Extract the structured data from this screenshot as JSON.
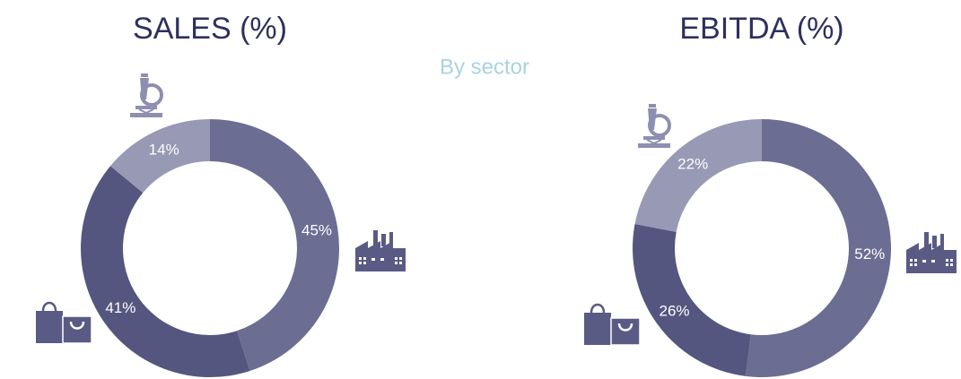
{
  "subtitle": "By sector",
  "chart_data": [
    {
      "type": "pie",
      "title": "SALES (%)",
      "values": [
        45,
        41,
        14
      ],
      "value_labels": [
        "45%",
        "41%",
        "14%"
      ],
      "colors": [
        "#6b6d92",
        "#55567f",
        "#9899b5"
      ]
    },
    {
      "type": "pie",
      "title": "EBITDA (%)",
      "values": [
        52,
        26,
        22
      ],
      "value_labels": [
        "52%",
        "26%",
        "22%"
      ],
      "colors": [
        "#6b6d92",
        "#55567f",
        "#9899b5"
      ]
    }
  ]
}
